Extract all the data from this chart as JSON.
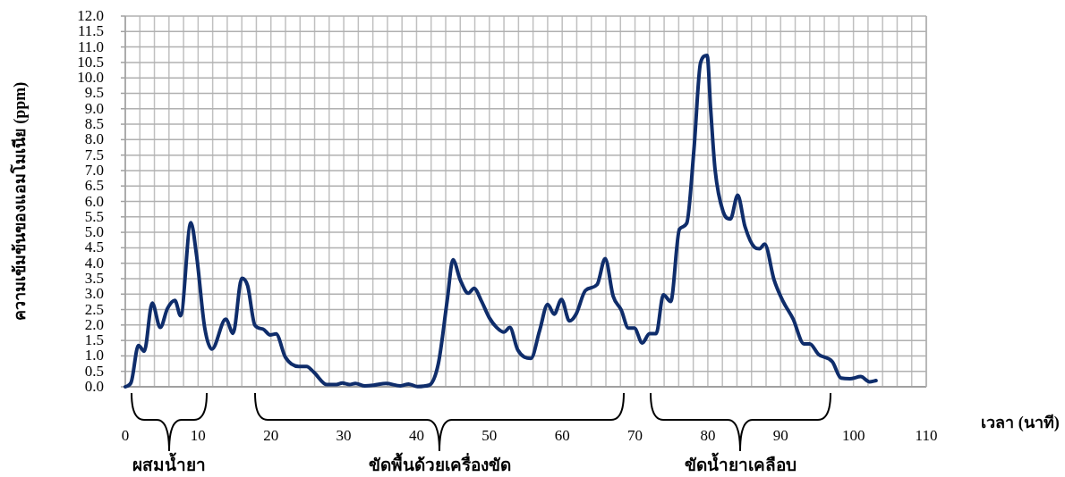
{
  "chart_data": {
    "type": "line",
    "xlabel": "เวลา (นาที)",
    "ylabel": "ความเข้มข้นของแอมโมเนีย (ppm)",
    "series": [
      {
        "color": "#0f2d6b",
        "x": [
          0,
          0.8,
          1.8,
          2.6,
          3.7,
          4.8,
          5.8,
          6.8,
          7.6,
          9.0,
          9.8,
          10.9,
          11.9,
          13.8,
          14.8,
          16.0,
          16.8,
          17.8,
          18.9,
          19.9,
          20.7,
          22.0,
          23.8,
          24.9,
          25.9,
          27.7,
          29.0,
          29.8,
          30.8,
          31.6,
          32.9,
          34.1,
          35.8,
          37.8,
          38.9,
          40.1,
          41.7,
          43.0,
          44.2,
          45.0,
          46.0,
          47.1,
          47.9,
          48.9,
          50.0,
          51.0,
          52.0,
          52.8,
          53.9,
          55.7,
          56.9,
          58.0,
          58.9,
          59.9,
          61.0,
          61.9,
          63.2,
          64.8,
          65.9,
          67.0,
          68.1,
          69.1,
          69.9,
          71.0,
          72.0,
          72.9,
          73.9,
          74.9,
          76.1,
          77.1,
          78.1,
          79.0,
          79.9,
          80.4,
          81.0,
          82.1,
          83.1,
          84.1,
          85.1,
          86.4,
          87.1,
          87.8,
          89.1,
          90.3,
          91.7,
          93.2,
          94.0,
          95.2,
          97.1,
          98.3,
          99.5,
          101.0,
          102.2,
          103.1
        ],
        "values": [
          0,
          0.14,
          1.34,
          1.15,
          2.71,
          1.92,
          2.54,
          2.8,
          2.3,
          5.31,
          4.23,
          1.92,
          1.22,
          2.19,
          1.73,
          3.51,
          3.27,
          1.99,
          1.87,
          1.68,
          1.71,
          0.95,
          0.66,
          0.66,
          0.47,
          0.07,
          0.07,
          0.12,
          0.07,
          0.11,
          0.03,
          0.05,
          0.11,
          0.03,
          0.09,
          0.01,
          0.05,
          0.76,
          2.78,
          4.11,
          3.46,
          3.03,
          3.19,
          2.78,
          2.23,
          1.92,
          1.77,
          1.92,
          1.19,
          0.92,
          1.82,
          2.67,
          2.35,
          2.83,
          2.13,
          2.35,
          3.12,
          3.31,
          4.15,
          2.93,
          2.49,
          1.9,
          1.9,
          1.42,
          1.72,
          1.72,
          2.98,
          2.76,
          5.1,
          5.29,
          7.7,
          10.49,
          10.73,
          8.95,
          7.02,
          5.67,
          5.43,
          6.2,
          5.19,
          4.52,
          4.47,
          4.62,
          3.46,
          2.78,
          2.2,
          1.39,
          1.39,
          1.05,
          0.81,
          0.28,
          0.26,
          0.33,
          0.16,
          0.2
        ]
      }
    ],
    "xlim": [
      0,
      110
    ],
    "xticks": [
      0,
      {
        "value": 2,
        "label": null
      },
      {
        "value": 4,
        "label": null
      },
      {
        "value": 6,
        "label": null
      },
      {
        "value": 8,
        "label": null
      },
      10,
      {
        "value": 12,
        "label": null
      },
      {
        "value": 14,
        "label": null
      },
      {
        "value": 16,
        "label": null
      },
      {
        "value": 18,
        "label": null
      },
      20,
      {
        "value": 22,
        "label": null
      },
      {
        "value": 24,
        "label": null
      },
      {
        "value": 26,
        "label": null
      },
      {
        "value": 28,
        "label": null
      },
      30,
      {
        "value": 32,
        "label": null
      },
      {
        "value": 34,
        "label": null
      },
      {
        "value": 36,
        "label": null
      },
      {
        "value": 38,
        "label": null
      },
      40,
      {
        "value": 42,
        "label": null
      },
      {
        "value": 44,
        "label": null
      },
      {
        "value": 46,
        "label": null
      },
      {
        "value": 48,
        "label": null
      },
      50,
      {
        "value": 52,
        "label": null
      },
      {
        "value": 54,
        "label": null
      },
      {
        "value": 56,
        "label": null
      },
      {
        "value": 58,
        "label": null
      },
      60,
      {
        "value": 62,
        "label": null
      },
      {
        "value": 64,
        "label": null
      },
      {
        "value": 66,
        "label": null
      },
      {
        "value": 68,
        "label": null
      },
      70,
      {
        "value": 72,
        "label": null
      },
      {
        "value": 74,
        "label": null
      },
      {
        "value": 76,
        "label": null
      },
      {
        "value": 78,
        "label": null
      },
      80,
      {
        "value": 82,
        "label": null
      },
      {
        "value": 84,
        "label": null
      },
      {
        "value": 86,
        "label": null
      },
      {
        "value": 88,
        "label": null
      },
      90,
      {
        "value": 92,
        "label": null
      },
      {
        "value": 94,
        "label": null
      },
      {
        "value": 96,
        "label": null
      },
      {
        "value": 98,
        "label": null
      },
      100,
      {
        "value": 102,
        "label": null
      },
      {
        "value": 104,
        "label": null
      },
      {
        "value": 106,
        "label": null
      },
      {
        "value": 108,
        "label": null
      },
      110
    ],
    "ylim": [
      0,
      12
    ],
    "yticks": [
      {
        "value": 0,
        "label": "0.0"
      },
      0.5,
      {
        "value": 1,
        "label": "1.0"
      },
      1.5,
      {
        "value": 2,
        "label": "2.0"
      },
      2.5,
      {
        "value": 3,
        "label": "3.0"
      },
      3.5,
      {
        "value": 4,
        "label": "4.0"
      },
      4.5,
      {
        "value": 5,
        "label": "5.0"
      },
      5.5,
      {
        "value": 6,
        "label": "6.0"
      },
      6.5,
      {
        "value": 7,
        "label": "7.0"
      },
      7.5,
      {
        "value": 8,
        "label": "8.0"
      },
      8.5,
      {
        "value": 9,
        "label": "9.0"
      },
      9.5,
      {
        "value": 10,
        "label": "10.0"
      },
      10.5,
      {
        "value": 11,
        "label": "11.0"
      },
      11.5,
      {
        "value": 12,
        "label": "12.0"
      }
    ],
    "grid": true,
    "marker": "none",
    "line_style": "solid",
    "annotations": [
      "ผสมน้ำยา",
      "ขัดพื้นด้วยเครื่องขัด",
      "ขัดน้ำยาเคลือบ"
    ]
  }
}
